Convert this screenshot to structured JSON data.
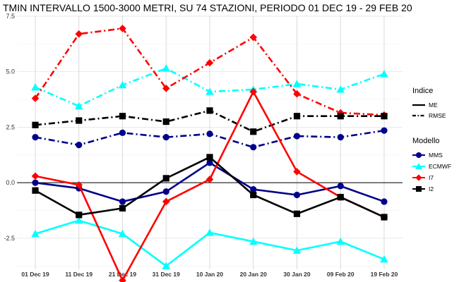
{
  "chart_data": {
    "type": "line",
    "title": "TMIN INTERVALLO 1500-3000 METRI, SU 74 STAZIONI, PERIODO 01 DEC 19  -  29 FEB 20",
    "xlabel": "",
    "ylabel": "",
    "categories": [
      "01 Dec 19",
      "11 Dec 19",
      "21 Dec 19",
      "31 Dec 19",
      "10 Jan 20",
      "20 Jan 20",
      "30 Jan 20",
      "09 Feb 20",
      "19 Feb 20"
    ],
    "y_ticks": [
      "-2.5",
      "0.0",
      "2.5",
      "5.0",
      "7.5"
    ],
    "ylim": [
      -3.9,
      7.5
    ],
    "grid": true,
    "zero_line": true,
    "legend_placement": "right",
    "legend": {
      "indice_title": "Indice",
      "indice_items": [
        {
          "label": "ME",
          "dash": "solid"
        },
        {
          "label": "RMSE",
          "dash": "dotdash"
        }
      ],
      "modello_title": "Modello",
      "modello_items": [
        {
          "label": "MMS",
          "color": "#00008b",
          "marker": "circle"
        },
        {
          "label": "ECMWF",
          "color": "#00ffff",
          "marker": "triangle"
        },
        {
          "label": "I7",
          "color": "#ff0000",
          "marker": "diamond"
        },
        {
          "label": "I2",
          "color": "#000000",
          "marker": "square"
        }
      ]
    },
    "series": [
      {
        "model": "MMS",
        "index": "ME",
        "color": "#00008b",
        "marker": "circle",
        "dash": "solid",
        "values": [
          0.0,
          -0.25,
          -0.85,
          -0.4,
          0.9,
          -0.3,
          -0.55,
          -0.15,
          -0.85
        ]
      },
      {
        "model": "MMS",
        "index": "RMSE",
        "color": "#00008b",
        "marker": "circle",
        "dash": "dotdash",
        "values": [
          2.05,
          1.7,
          2.25,
          2.05,
          2.2,
          1.6,
          2.1,
          2.05,
          2.35
        ]
      },
      {
        "model": "ECMWF",
        "index": "ME",
        "color": "#00ffff",
        "marker": "triangle",
        "dash": "solid",
        "values": [
          -2.3,
          -1.7,
          -2.3,
          -3.75,
          -2.25,
          -2.65,
          -3.05,
          -2.65,
          -3.45
        ]
      },
      {
        "model": "ECMWF",
        "index": "RMSE",
        "color": "#00ffff",
        "marker": "triangle",
        "dash": "dotdash",
        "values": [
          4.3,
          3.45,
          4.4,
          5.15,
          4.1,
          4.2,
          4.45,
          4.2,
          4.9
        ]
      },
      {
        "model": "I7",
        "index": "ME",
        "color": "#ff0000",
        "marker": "diamond",
        "dash": "solid",
        "values": [
          0.3,
          -0.1,
          -4.4,
          -0.85,
          0.15,
          4.1,
          0.5,
          -0.65,
          -1.55
        ]
      },
      {
        "model": "I7",
        "index": "RMSE",
        "color": "#ff0000",
        "marker": "diamond",
        "dash": "dotdash",
        "values": [
          3.8,
          6.7,
          6.95,
          4.25,
          5.4,
          6.55,
          4.0,
          3.15,
          3.05
        ]
      },
      {
        "model": "I2",
        "index": "ME",
        "color": "#000000",
        "marker": "square",
        "dash": "solid",
        "values": [
          -0.35,
          -1.45,
          -1.15,
          0.2,
          1.15,
          -0.55,
          -1.4,
          -0.65,
          -1.55
        ]
      },
      {
        "model": "I2",
        "index": "RMSE",
        "color": "#000000",
        "marker": "square",
        "dash": "dotdash",
        "values": [
          2.6,
          2.8,
          3.0,
          2.75,
          3.25,
          2.3,
          3.0,
          3.0,
          3.0
        ]
      }
    ]
  }
}
